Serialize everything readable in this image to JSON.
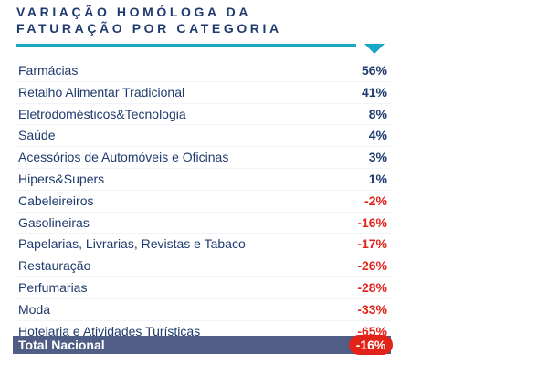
{
  "header": {
    "title_line1": "VARIAÇÃO HOMÓLOGA DA",
    "title_line2": "FATURAÇÃO POR CATEGORIA"
  },
  "colors": {
    "title": "#1f3a6e",
    "accent": "#19a6c7",
    "positive": "#1f3a6e",
    "negative": "#e2231a",
    "total_bar": "#505d85"
  },
  "chart_data": {
    "type": "table",
    "title": "VARIAÇÃO HOMÓLOGA DA FATURAÇÃO POR CATEGORIA",
    "unit": "%",
    "rows": [
      {
        "category": "Farmácias",
        "display": "56%",
        "value": 56
      },
      {
        "category": "Retalho Alimentar Tradicional",
        "display": "41%",
        "value": 41
      },
      {
        "category": "Eletrodomésticos&Tecnologia",
        "display": "8%",
        "value": 8
      },
      {
        "category": "Saúde",
        "display": "4%",
        "value": 4
      },
      {
        "category": "Acessórios de Automóveis e Oficinas",
        "display": "3%",
        "value": 3
      },
      {
        "category": "Hipers&Supers",
        "display": "1%",
        "value": 1
      },
      {
        "category": "Cabeleireiros",
        "display": "-2%",
        "value": -2
      },
      {
        "category": "Gasolineiras",
        "display": "-16%",
        "value": -16
      },
      {
        "category": "Papelarias, Livrarias, Revistas e Tabaco",
        "display": "-17%",
        "value": -17
      },
      {
        "category": "Restauração",
        "display": "-26%",
        "value": -26
      },
      {
        "category": "Perfumarias",
        "display": "-28%",
        "value": -28
      },
      {
        "category": "Moda",
        "display": "-33%",
        "value": -33
      },
      {
        "category": "Hotelaria e Atividades Turísticas",
        "display": "-65%",
        "value": -65
      }
    ],
    "total": {
      "category": "Total Nacional",
      "display": "-16%",
      "value": -16
    }
  }
}
